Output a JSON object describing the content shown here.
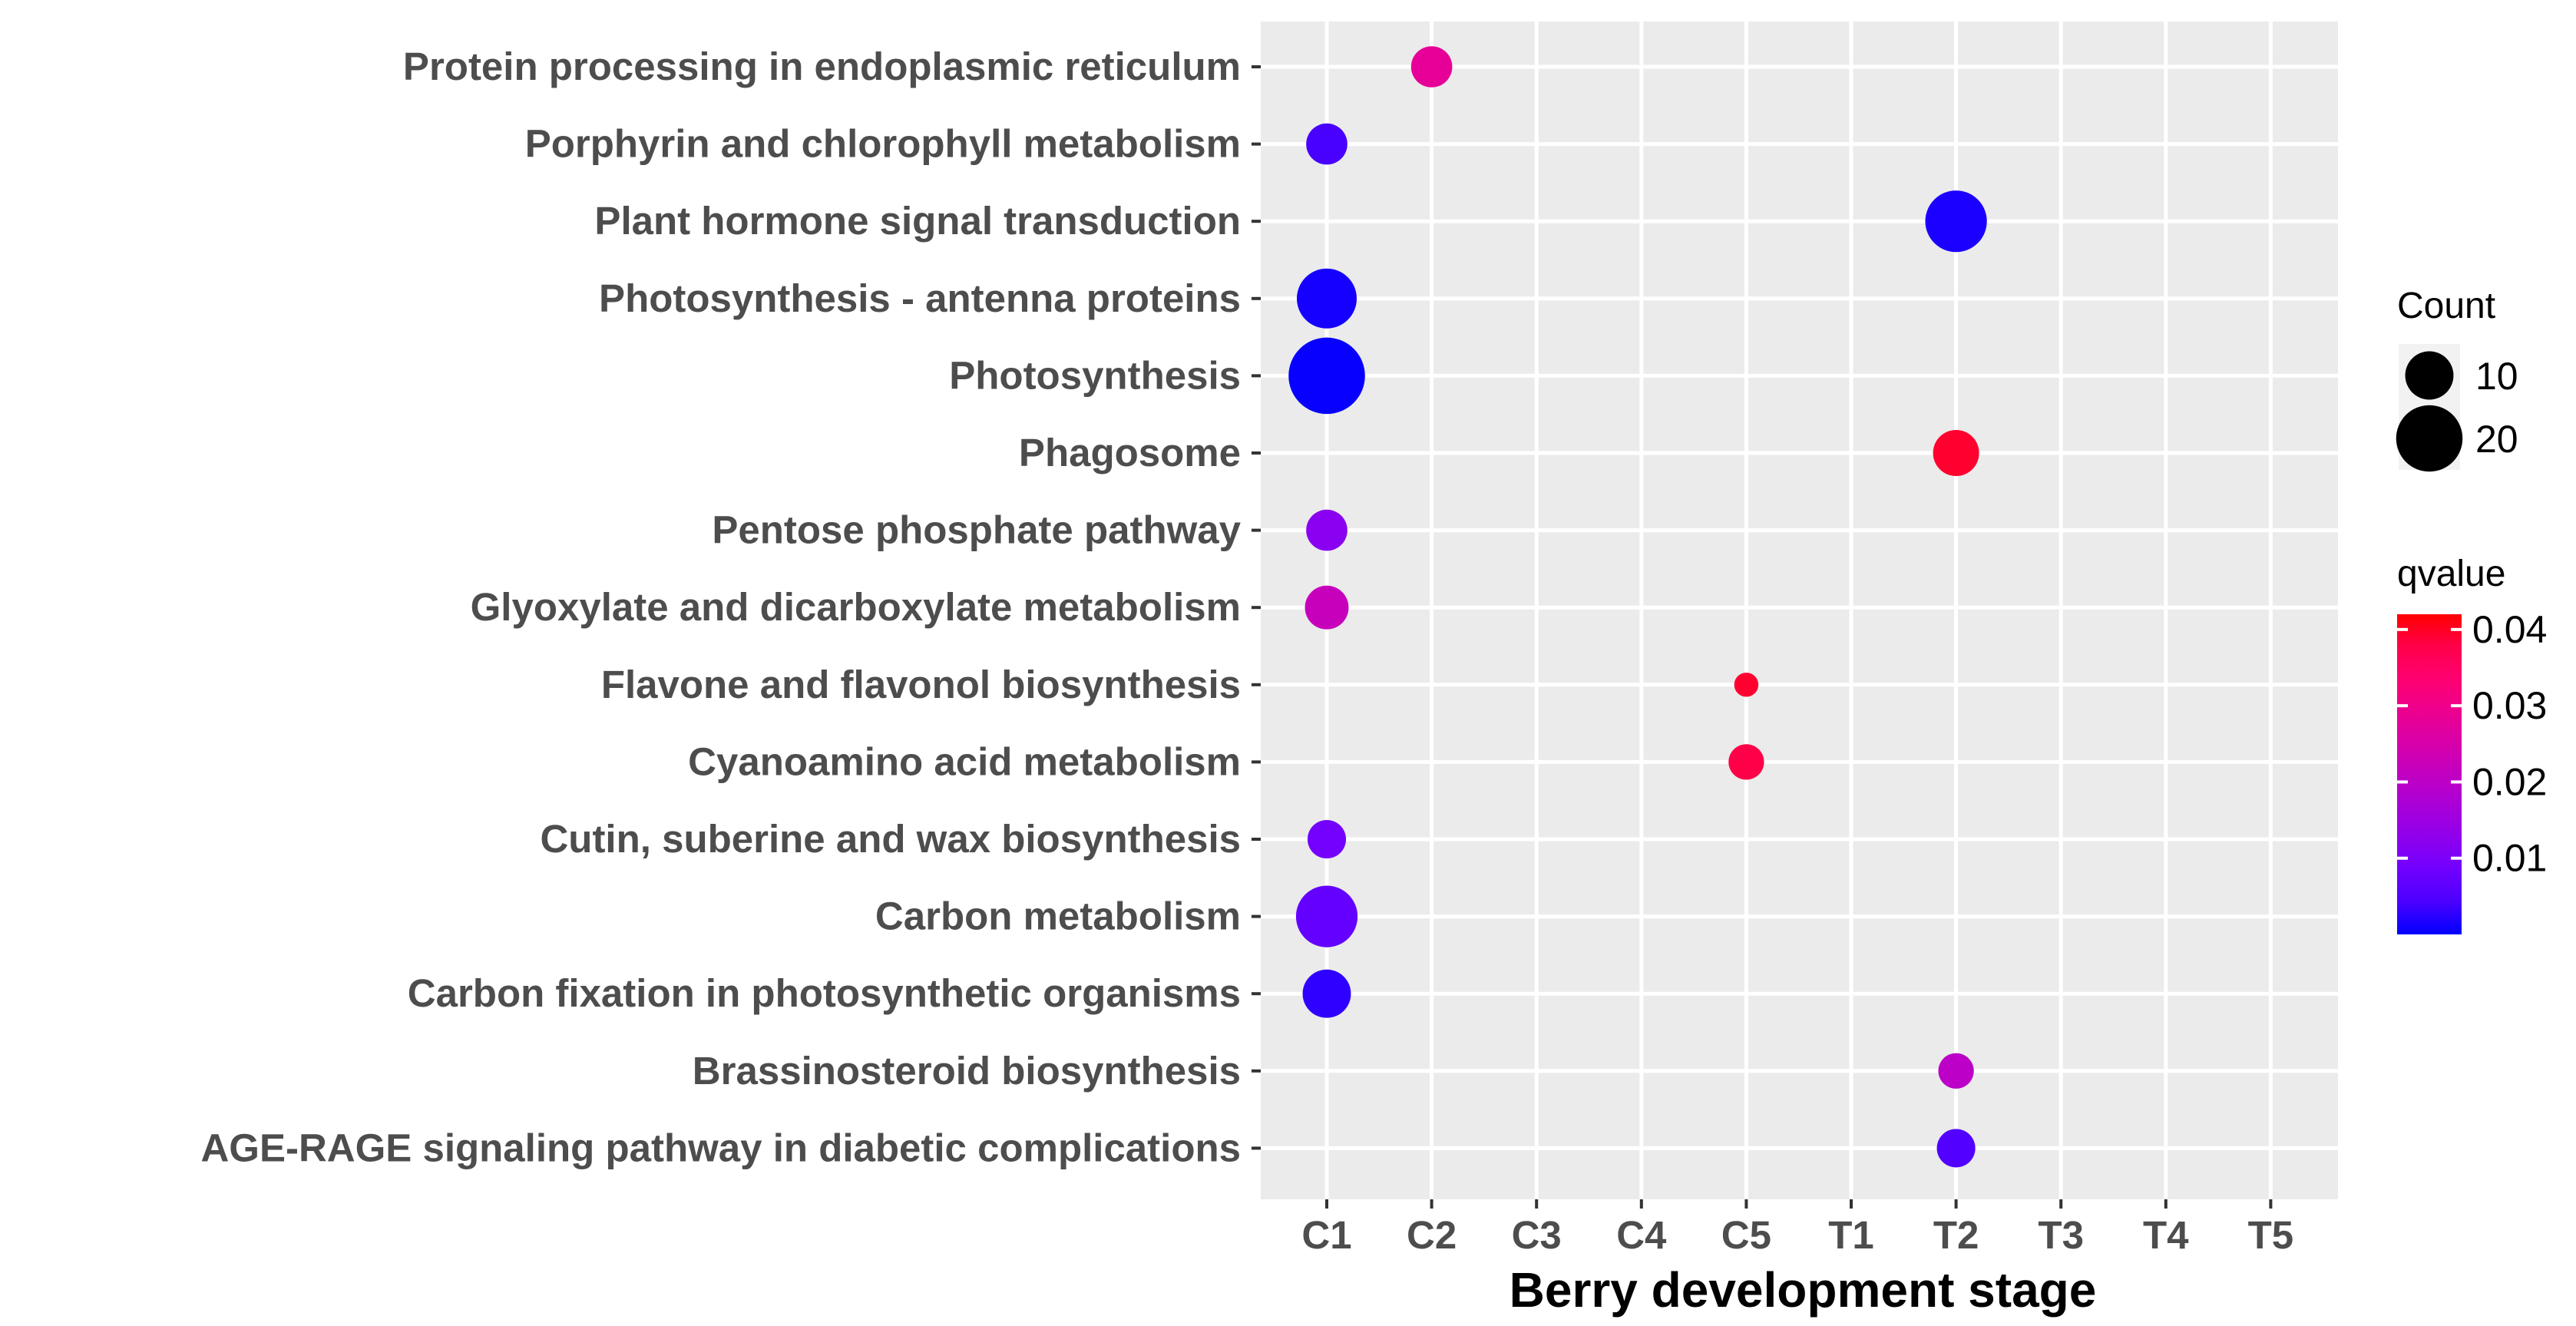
{
  "chart_data": {
    "type": "scatter",
    "subtype": "bubble",
    "title": "",
    "xlabel": "Berry development stage",
    "ylabel": "",
    "x_categories": [
      "C1",
      "C2",
      "C3",
      "C4",
      "C5",
      "T1",
      "T2",
      "T3",
      "T4",
      "T5"
    ],
    "y_categories": [
      "AGE-RAGE signaling pathway in diabetic complications",
      "Brassinosteroid biosynthesis",
      "Carbon fixation in photosynthetic organisms",
      "Carbon metabolism",
      "Cutin, suberine and wax biosynthesis",
      "Cyanoamino acid metabolism",
      "Flavone and flavonol biosynthesis",
      "Glyoxylate and dicarboxylate metabolism",
      "Pentose phosphate pathway",
      "Phagosome",
      "Photosynthesis",
      "Photosynthesis - antenna proteins",
      "Plant hormone signal transduction",
      "Porphyrin and chlorophyll metabolism",
      "Protein processing in endoplasmic reticulum"
    ],
    "points": [
      {
        "pathway": "Protein processing in endoplasmic reticulum",
        "stage": "C2",
        "count": 7,
        "qvalue": 0.028
      },
      {
        "pathway": "Porphyrin and chlorophyll metabolism",
        "stage": "C1",
        "count": 7,
        "qvalue": 0.004
      },
      {
        "pathway": "Plant hormone signal transduction",
        "stage": "T2",
        "count": 17,
        "qvalue": 0.0008
      },
      {
        "pathway": "Photosynthesis - antenna proteins",
        "stage": "C1",
        "count": 16,
        "qvalue": 0.0005
      },
      {
        "pathway": "Photosynthesis",
        "stage": "C1",
        "count": 27,
        "qvalue": 0.0001
      },
      {
        "pathway": "Phagosome",
        "stage": "T2",
        "count": 9,
        "qvalue": 0.04
      },
      {
        "pathway": "Pentose phosphate pathway",
        "stage": "C1",
        "count": 7,
        "qvalue": 0.012
      },
      {
        "pathway": "Glyoxylate and dicarboxylate metabolism",
        "stage": "C1",
        "count": 8,
        "qvalue": 0.022
      },
      {
        "pathway": "Flavone and flavonol biosynthesis",
        "stage": "C5",
        "count": 2,
        "qvalue": 0.04
      },
      {
        "pathway": "Cyanoamino acid metabolism",
        "stage": "C5",
        "count": 5,
        "qvalue": 0.038
      },
      {
        "pathway": "Cutin, suberine and wax biosynthesis",
        "stage": "C1",
        "count": 6,
        "qvalue": 0.009
      },
      {
        "pathway": "Carbon metabolism",
        "stage": "C1",
        "count": 17,
        "qvalue": 0.007
      },
      {
        "pathway": "Carbon fixation in photosynthetic organisms",
        "stage": "C1",
        "count": 10,
        "qvalue": 0.002
      },
      {
        "pathway": "Brassinosteroid biosynthesis",
        "stage": "T2",
        "count": 5,
        "qvalue": 0.02
      },
      {
        "pathway": "AGE-RAGE signaling pathway in diabetic complications",
        "stage": "T2",
        "count": 6,
        "qvalue": 0.005
      }
    ],
    "size_legend": {
      "title": "Count",
      "values": [
        10,
        20
      ],
      "labels": [
        "10",
        "20"
      ]
    },
    "color_legend": {
      "title": "qvalue",
      "range": [
        0,
        0.042
      ],
      "ticks": [
        0.01,
        0.02,
        0.03,
        0.04
      ],
      "tick_labels": [
        "0.01",
        "0.02",
        "0.03",
        "0.04"
      ],
      "low_color": "#0000ff",
      "high_color": "#ff0000"
    },
    "grid": true
  }
}
